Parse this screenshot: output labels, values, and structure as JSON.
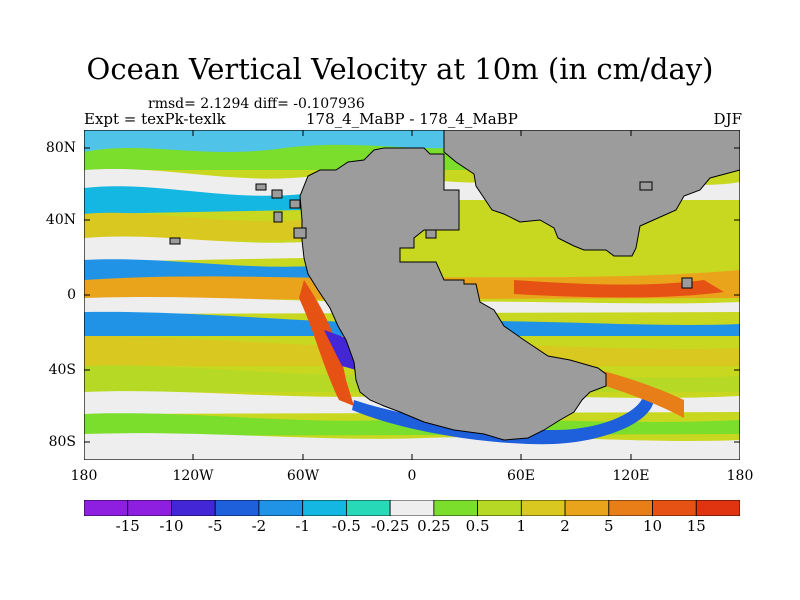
{
  "title": "Ocean Vertical Velocity at 10m (in cm/day)",
  "stats": "rmsd= 2.1294 diff= -0.107936",
  "experiment": "Expt = texPk-texlk",
  "model_label": "178_4_MaBP - 178_4_MaBP",
  "season": "DJF",
  "lat_labels": [
    "80N",
    "40N",
    "0",
    "40S",
    "80S"
  ],
  "lon_labels": [
    "180",
    "120W",
    "60W",
    "0",
    "60E",
    "120E",
    "180"
  ],
  "colorbar": {
    "labels": [
      "-15",
      "-10",
      "-5",
      "-2",
      "-1",
      "-0.5",
      "-0.25",
      "0.25",
      "0.5",
      "1",
      "2",
      "5",
      "10",
      "15"
    ],
    "colors": [
      "#8f1fe0",
      "#4326d6",
      "#1e5fdc",
      "#2093e6",
      "#13b7e1",
      "#28d9b7",
      "#eeeeee",
      "#7bde2c",
      "#b6d926",
      "#d9c81f",
      "#e9a41c",
      "#e77e17",
      "#e65214",
      "#e03411"
    ]
  },
  "land_color": "#9c9c9c"
}
